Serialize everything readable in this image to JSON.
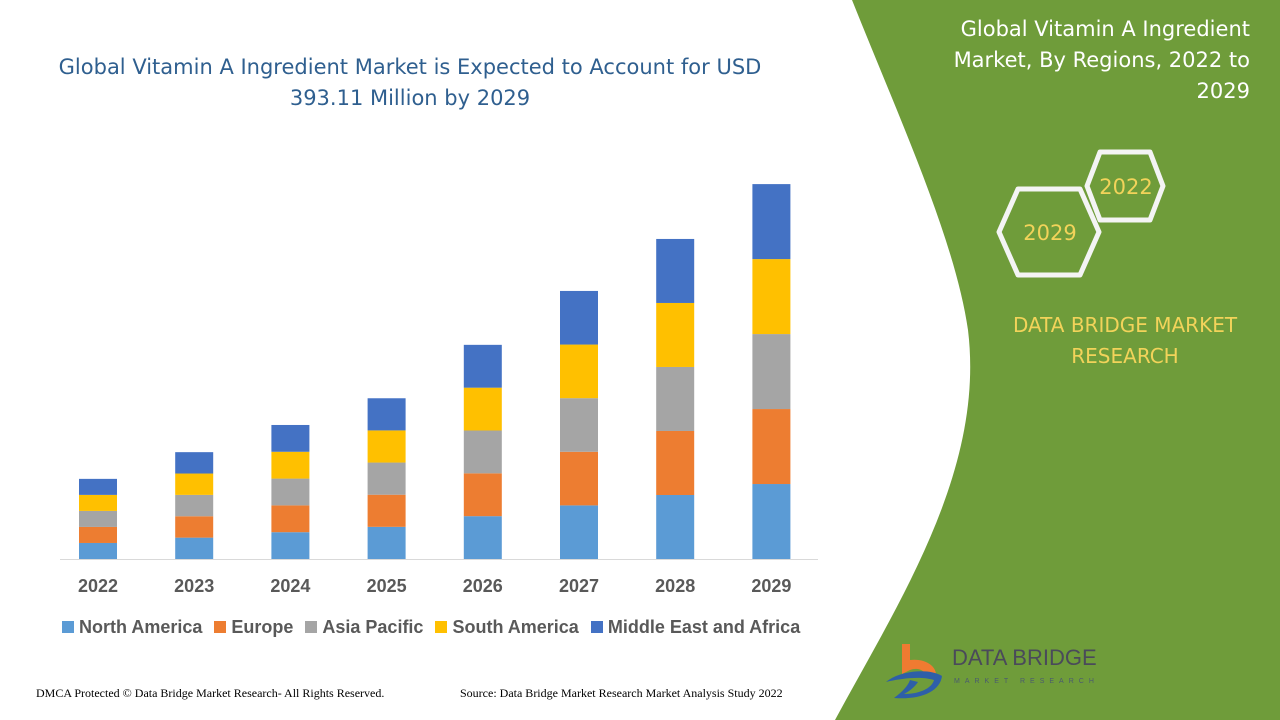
{
  "header": {
    "title": "Global Vitamin A Ingredient Market is Expected to Account for USD 393.11 Million by 2029"
  },
  "side_panel": {
    "title": "Global Vitamin A Ingredient Market, By Regions, 2022 to 2029",
    "hex_start": "2022",
    "hex_end": "2029",
    "brand": "DATA BRIDGE MARKET RESEARCH",
    "color": "#6f9c3a"
  },
  "logo": {
    "name": "DATA BRIDGE",
    "tagline": "MARKET RESEARCH"
  },
  "footer": {
    "copyright": "DMCA Protected © Data Bridge Market Research- All Rights Reserved.",
    "source": "Source: Data Bridge Market Research Market Analysis Study 2022"
  },
  "chart_data": {
    "type": "bar",
    "stacked": true,
    "title": "Global Vitamin A Ingredient Market is Expected to Account for USD 393.11 Million by 2029",
    "categories": [
      "2022",
      "2023",
      "2024",
      "2025",
      "2026",
      "2027",
      "2028",
      "2029"
    ],
    "legend_position": "bottom",
    "grid": false,
    "series": [
      {
        "name": "North America",
        "color": "#5b9bd5",
        "values": [
          16.8,
          22.4,
          28.1,
          33.7,
          44.9,
          56.2,
          67.1,
          78.6
        ]
      },
      {
        "name": "Europe",
        "color": "#ed7d31",
        "values": [
          16.8,
          22.4,
          28.1,
          33.7,
          44.9,
          56.2,
          67.1,
          78.6
        ]
      },
      {
        "name": "Asia Pacific",
        "color": "#a5a5a5",
        "values": [
          16.8,
          22.4,
          28.1,
          33.7,
          44.9,
          56.2,
          67.1,
          78.6
        ]
      },
      {
        "name": "South America",
        "color": "#ffc000",
        "values": [
          16.8,
          22.4,
          28.1,
          33.7,
          44.9,
          56.2,
          67.1,
          78.6
        ]
      },
      {
        "name": "Middle East and Africa",
        "color": "#4472c4",
        "values": [
          16.8,
          22.4,
          28.1,
          33.7,
          44.9,
          56.2,
          67.1,
          78.6
        ]
      }
    ]
  }
}
